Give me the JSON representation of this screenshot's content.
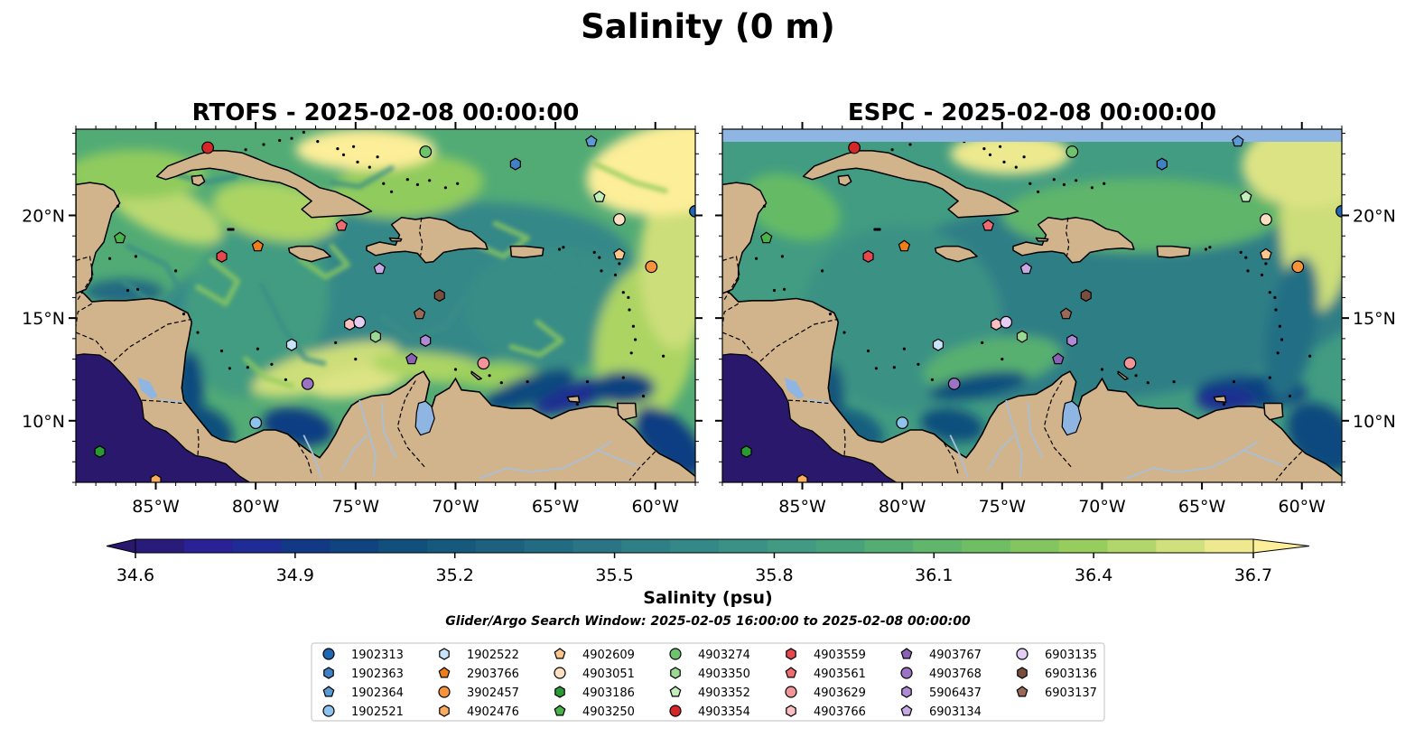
{
  "title": "Salinity (0 m)",
  "panels": [
    {
      "title": "RTOFS - 2025-02-08 00:00:00",
      "model": "rtofs"
    },
    {
      "title": "ESPC - 2025-02-08 00:00:00",
      "model": "espc"
    }
  ],
  "map": {
    "lon_range": [
      -89,
      -58
    ],
    "lat_range": [
      7,
      24.2
    ],
    "lon_ticks": [
      {
        "value": -85,
        "label": "85°W"
      },
      {
        "value": -80,
        "label": "80°W"
      },
      {
        "value": -75,
        "label": "75°W"
      },
      {
        "value": -70,
        "label": "70°W"
      },
      {
        "value": -65,
        "label": "65°W"
      },
      {
        "value": -60,
        "label": "60°W"
      }
    ],
    "lat_ticks": [
      {
        "value": 10,
        "label": "10°N"
      },
      {
        "value": 15,
        "label": "15°N"
      },
      {
        "value": 20,
        "label": "20°N"
      }
    ],
    "colors": {
      "land": "#d2b48c",
      "coast": "#000000",
      "rivers": "#a8bfd8",
      "lake": "#8fb5e3",
      "missing": "#8fb5e3"
    }
  },
  "colorbar": {
    "label": "Salinity (psu)",
    "min": 34.6,
    "max": 36.7,
    "extend": "both",
    "ticks": [
      "34.6",
      "34.9",
      "35.2",
      "35.5",
      "35.8",
      "36.1",
      "36.4",
      "36.7"
    ],
    "colormap": "haline",
    "levels": 23
  },
  "search_window": "Glider/Argo Search Window: 2025-02-05 16:00:00 to 2025-02-08 00:00:00",
  "floats": [
    {
      "id": "1902313",
      "marker": "circle",
      "color": "#1f67b2",
      "lon": -58.0,
      "lat": 20.2
    },
    {
      "id": "1902363",
      "marker": "hexagon",
      "color": "#3f81c4",
      "lon": -67.0,
      "lat": 22.5
    },
    {
      "id": "1902364",
      "marker": "pentagon",
      "color": "#5a9ad6",
      "lon": -63.2,
      "lat": 23.6
    },
    {
      "id": "1902521",
      "marker": "circle",
      "color": "#8ec3ee",
      "lon": -80.0,
      "lat": 9.9
    },
    {
      "id": "1902522",
      "marker": "hexagon",
      "color": "#c8e4fa",
      "lon": -78.2,
      "lat": 13.7
    },
    {
      "id": "2903766",
      "marker": "pentagon",
      "color": "#ee7e1a",
      "lon": -79.9,
      "lat": 18.5
    },
    {
      "id": "3902457",
      "marker": "circle",
      "color": "#f7933a",
      "lon": -60.2,
      "lat": 17.5
    },
    {
      "id": "4902476",
      "marker": "hexagon",
      "color": "#fbac5e",
      "lon": -85.0,
      "lat": 7.1
    },
    {
      "id": "4902609",
      "marker": "pentagon",
      "color": "#fdc68d",
      "lon": -61.8,
      "lat": 18.1
    },
    {
      "id": "4903051",
      "marker": "circle",
      "color": "#fde0c1",
      "lon": -61.8,
      "lat": 19.8
    },
    {
      "id": "4903186",
      "marker": "hexagon",
      "color": "#2a9a35",
      "lon": -87.8,
      "lat": 8.5
    },
    {
      "id": "4903250",
      "marker": "pentagon",
      "color": "#4ab24a",
      "lon": -86.8,
      "lat": 18.9
    },
    {
      "id": "4903274",
      "marker": "circle",
      "color": "#6dc46c",
      "lon": -71.5,
      "lat": 23.1
    },
    {
      "id": "4903350",
      "marker": "hexagon",
      "color": "#9ad994",
      "lon": -74.0,
      "lat": 14.1
    },
    {
      "id": "4903352",
      "marker": "pentagon",
      "color": "#c3edbd",
      "lon": -62.8,
      "lat": 20.9
    },
    {
      "id": "4903354",
      "marker": "circle",
      "color": "#d62728",
      "lon": -82.4,
      "lat": 23.3
    },
    {
      "id": "4903559",
      "marker": "hexagon",
      "color": "#e5474d",
      "lon": -81.7,
      "lat": 18.0
    },
    {
      "id": "4903561",
      "marker": "pentagon",
      "color": "#ee6b72",
      "lon": -75.7,
      "lat": 19.5
    },
    {
      "id": "4903629",
      "marker": "circle",
      "color": "#f39499",
      "lon": -68.6,
      "lat": 12.8
    },
    {
      "id": "4903766",
      "marker": "hexagon",
      "color": "#f9bfc1",
      "lon": -75.3,
      "lat": 14.7
    },
    {
      "id": "4903767",
      "marker": "pentagon",
      "color": "#8a61b5",
      "lon": -72.2,
      "lat": 13.0
    },
    {
      "id": "4903768",
      "marker": "circle",
      "color": "#9b73c5",
      "lon": -77.4,
      "lat": 11.8
    },
    {
      "id": "5906437",
      "marker": "hexagon",
      "color": "#b08ad4",
      "lon": -71.5,
      "lat": 13.9
    },
    {
      "id": "6903134",
      "marker": "pentagon",
      "color": "#c8a9e3",
      "lon": -73.8,
      "lat": 17.4
    },
    {
      "id": "6903135",
      "marker": "circle",
      "color": "#e4cdf3",
      "lon": -74.8,
      "lat": 14.8
    },
    {
      "id": "6903136",
      "marker": "hexagon",
      "color": "#7a4e3c",
      "lon": -70.8,
      "lat": 16.1
    },
    {
      "id": "6903137",
      "marker": "pentagon",
      "color": "#9a6a58",
      "lon": -71.8,
      "lat": 15.2
    }
  ]
}
